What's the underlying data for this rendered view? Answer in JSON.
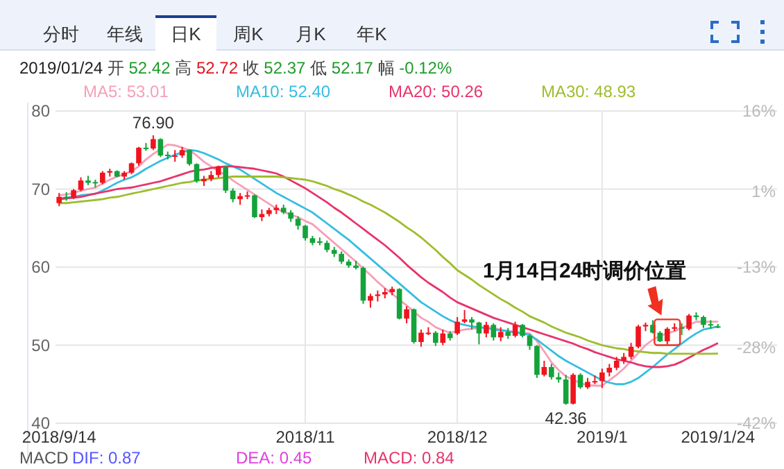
{
  "chart_data": {
    "type": "candlestick",
    "categories": [
      "2018/9/14",
      null,
      null,
      null,
      null,
      null,
      null,
      null,
      null,
      null,
      null,
      null,
      null,
      null,
      null,
      null,
      null,
      null,
      null,
      null,
      null,
      null,
      null,
      null,
      null,
      null,
      null,
      null,
      null,
      null,
      null,
      null,
      null,
      null,
      "2018/11",
      null,
      null,
      null,
      null,
      null,
      null,
      null,
      null,
      null,
      null,
      null,
      null,
      null,
      null,
      null,
      null,
      null,
      null,
      null,
      null,
      "2018/12",
      null,
      null,
      null,
      null,
      null,
      null,
      null,
      null,
      null,
      null,
      null,
      null,
      null,
      null,
      null,
      null,
      null,
      null,
      null,
      "2019/1",
      null,
      null,
      null,
      null,
      null,
      null,
      null,
      null,
      null,
      null,
      null,
      null,
      null,
      null,
      null,
      "2019/1/24"
    ],
    "ohlc": [
      [
        68.2,
        69.5,
        67.8,
        69.0
      ],
      [
        69.0,
        69.6,
        68.5,
        68.9
      ],
      [
        68.9,
        70.0,
        68.7,
        69.85
      ],
      [
        69.9,
        71.5,
        69.7,
        71.1
      ],
      [
        71.1,
        71.7,
        70.5,
        70.8
      ],
      [
        70.9,
        71.2,
        70.2,
        70.8
      ],
      [
        70.8,
        72.3,
        70.6,
        72.1
      ],
      [
        72.1,
        72.6,
        71.6,
        72.3
      ],
      [
        72.3,
        72.4,
        71.5,
        71.6
      ],
      [
        71.6,
        72.3,
        71.2,
        72.1
      ],
      [
        72.1,
        73.4,
        71.9,
        73.3
      ],
      [
        73.3,
        75.4,
        73.0,
        75.3
      ],
      [
        75.3,
        75.9,
        74.9,
        75.2
      ],
      [
        75.2,
        76.9,
        75.0,
        76.4
      ],
      [
        76.4,
        76.5,
        74.1,
        74.3
      ],
      [
        74.4,
        74.8,
        73.8,
        74.3
      ],
      [
        74.2,
        75.0,
        73.5,
        74.3
      ],
      [
        74.3,
        75.4,
        74.0,
        75.0
      ],
      [
        75.0,
        75.1,
        73.0,
        73.2
      ],
      [
        73.2,
        73.3,
        70.8,
        71.0
      ],
      [
        71.0,
        71.7,
        70.4,
        71.3
      ],
      [
        71.3,
        72.3,
        71.0,
        71.8
      ],
      [
        71.8,
        73.0,
        71.5,
        72.9
      ],
      [
        72.9,
        72.9,
        69.5,
        69.8
      ],
      [
        69.8,
        70.1,
        68.3,
        68.7
      ],
      [
        68.7,
        69.5,
        68.0,
        69.1
      ],
      [
        69.1,
        69.7,
        68.7,
        69.2
      ],
      [
        69.2,
        69.3,
        66.3,
        66.4
      ],
      [
        66.4,
        67.4,
        65.9,
        66.8
      ],
      [
        66.8,
        67.6,
        66.5,
        67.3
      ],
      [
        67.3,
        68.0,
        66.8,
        67.6
      ],
      [
        67.6,
        68.0,
        66.8,
        67.0
      ],
      [
        67.0,
        67.3,
        65.8,
        66.2
      ],
      [
        66.2,
        66.5,
        64.8,
        65.3
      ],
      [
        65.3,
        65.4,
        63.4,
        63.7
      ],
      [
        63.7,
        64.0,
        62.8,
        63.1
      ],
      [
        63.3,
        63.8,
        62.8,
        63.1
      ],
      [
        63.1,
        63.4,
        61.9,
        62.2
      ],
      [
        62.2,
        62.6,
        61.3,
        61.7
      ],
      [
        61.7,
        62.0,
        60.4,
        60.7
      ],
      [
        60.7,
        61.0,
        59.9,
        60.2
      ],
      [
        60.2,
        60.8,
        59.7,
        59.9
      ],
      [
        59.9,
        60.1,
        55.3,
        55.7
      ],
      [
        55.7,
        56.6,
        54.8,
        56.3
      ],
      [
        56.3,
        57.0,
        55.6,
        56.5
      ],
      [
        56.5,
        57.3,
        56.0,
        56.8
      ],
      [
        56.8,
        57.5,
        56.4,
        57.2
      ],
      [
        57.2,
        57.3,
        53.3,
        53.4
      ],
      [
        53.4,
        55.0,
        52.8,
        54.6
      ],
      [
        54.6,
        54.7,
        50.2,
        50.4
      ],
      [
        50.4,
        52.0,
        49.8,
        51.6
      ],
      [
        51.5,
        52.3,
        51.3,
        51.6
      ],
      [
        51.6,
        51.8,
        49.9,
        50.3
      ],
      [
        50.3,
        52.0,
        50.0,
        51.5
      ],
      [
        51.5,
        51.8,
        50.6,
        50.9
      ],
      [
        51.5,
        53.6,
        51.3,
        53.0
      ],
      [
        53.0,
        54.5,
        52.8,
        53.3
      ],
      [
        53.3,
        53.6,
        52.0,
        52.9
      ],
      [
        52.9,
        53.0,
        50.1,
        51.5
      ],
      [
        51.5,
        53.0,
        51.0,
        52.6
      ],
      [
        52.6,
        52.8,
        50.6,
        51.0
      ],
      [
        51.0,
        52.3,
        50.5,
        51.7
      ],
      [
        51.7,
        52.2,
        50.8,
        51.2
      ],
      [
        51.2,
        53.0,
        51.0,
        52.6
      ],
      [
        52.6,
        52.7,
        51.0,
        51.2
      ],
      [
        51.2,
        51.4,
        49.4,
        49.9
      ],
      [
        49.9,
        50.0,
        45.8,
        46.2
      ],
      [
        46.2,
        48.0,
        46.0,
        47.2
      ],
      [
        47.2,
        47.6,
        45.6,
        45.9
      ],
      [
        45.9,
        46.5,
        45.2,
        45.6
      ],
      [
        45.6,
        46.2,
        42.36,
        42.5
      ],
      [
        42.5,
        46.4,
        42.4,
        46.2
      ],
      [
        46.2,
        46.4,
        44.4,
        44.6
      ],
      [
        44.6,
        45.8,
        44.4,
        45.3
      ],
      [
        45.3,
        46.1,
        45.0,
        45.4
      ],
      [
        45.4,
        47.0,
        44.5,
        46.5
      ],
      [
        46.5,
        47.6,
        46.0,
        47.1
      ],
      [
        47.1,
        48.5,
        46.8,
        48.0
      ],
      [
        48.0,
        49.0,
        47.6,
        48.5
      ],
      [
        48.5,
        50.3,
        48.2,
        49.8
      ],
      [
        49.8,
        52.6,
        49.6,
        52.4
      ],
      [
        52.4,
        52.9,
        51.8,
        52.6
      ],
      [
        52.6,
        53.2,
        51.5,
        51.6
      ],
      [
        51.6,
        51.8,
        50.4,
        50.5
      ],
      [
        50.5,
        52.3,
        50.1,
        52.1
      ],
      [
        52.1,
        52.8,
        51.8,
        52.3
      ],
      [
        52.3,
        52.8,
        51.3,
        52.1
      ],
      [
        52.1,
        54.0,
        51.9,
        53.8
      ],
      [
        53.8,
        54.2,
        53.2,
        53.6
      ],
      [
        53.6,
        53.8,
        52.2,
        52.6
      ],
      [
        52.7,
        53.2,
        52.1,
        52.6
      ],
      [
        52.42,
        52.72,
        52.17,
        52.37
      ]
    ],
    "series": [
      {
        "name": "MA5: 53.01",
        "type": "line",
        "color": "#f5a0b8",
        "values": [
          69.2,
          69.3,
          69.5,
          69.8,
          70.0,
          70.2,
          70.7,
          71.2,
          71.6,
          71.9,
          72.3,
          72.9,
          73.8,
          74.5,
          75.1,
          75.7,
          75.6,
          75.3,
          75.0,
          74.3,
          73.5,
          72.9,
          72.3,
          71.8,
          71.1,
          70.5,
          69.9,
          69.3,
          68.7,
          68.1,
          67.5,
          67.1,
          66.7,
          66.4,
          65.9,
          65.5,
          64.7,
          63.9,
          63.1,
          62.3,
          61.5,
          60.7,
          59.8,
          59.0,
          58.1,
          57.3,
          56.6,
          55.8,
          55.1,
          54.3,
          53.5,
          53.0,
          52.3,
          51.9,
          51.6,
          51.8,
          52.0,
          52.1,
          52.2,
          52.3,
          52.2,
          52.0,
          51.8,
          51.7,
          51.6,
          51.5,
          50.5,
          49.2,
          47.8,
          46.8,
          46.0,
          45.6,
          45.1,
          44.9,
          44.8,
          44.8,
          45.5,
          46.2,
          47.0,
          48.0,
          49.0,
          50.0,
          50.7,
          51.2,
          51.5,
          51.8,
          52.2,
          52.6,
          53.0,
          53.0,
          53.0,
          53.01
        ]
      },
      {
        "name": "MA10: 52.40",
        "type": "line",
        "color": "#35bde0",
        "values": [
          68.8,
          68.9,
          69.0,
          69.2,
          69.3,
          69.4,
          69.8,
          70.3,
          70.8,
          71.2,
          71.5,
          72.0,
          72.6,
          73.1,
          73.6,
          74.0,
          74.4,
          74.7,
          75.0,
          74.9,
          74.6,
          74.2,
          73.8,
          73.3,
          72.9,
          72.5,
          71.9,
          71.3,
          70.7,
          70.1,
          69.5,
          69.0,
          68.5,
          68.0,
          67.5,
          67.0,
          66.3,
          65.6,
          64.9,
          64.2,
          63.5,
          62.7,
          61.9,
          61.1,
          60.3,
          59.5,
          58.7,
          57.9,
          57.1,
          56.3,
          55.5,
          54.9,
          54.3,
          53.7,
          53.2,
          52.8,
          52.6,
          52.4,
          52.3,
          52.2,
          52.0,
          51.9,
          51.8,
          51.6,
          51.5,
          51.3,
          50.7,
          50.0,
          49.3,
          48.6,
          48.0,
          47.5,
          47.0,
          46.5,
          46.0,
          45.5,
          45.2,
          45.0,
          45.0,
          45.3,
          45.8,
          46.5,
          47.2,
          48.0,
          48.8,
          49.5,
          50.2,
          50.9,
          51.5,
          52.0,
          52.2,
          52.4
        ]
      },
      {
        "name": "MA20: 50.26",
        "type": "line",
        "color": "#e8336b",
        "values": [
          68.7,
          68.8,
          68.9,
          69.0,
          69.2,
          69.4,
          69.6,
          69.8,
          70.0,
          70.1,
          70.2,
          70.4,
          70.6,
          70.8,
          71.0,
          71.3,
          71.6,
          71.9,
          72.2,
          72.4,
          72.5,
          72.7,
          72.8,
          72.9,
          72.9,
          72.8,
          72.7,
          72.6,
          72.4,
          72.2,
          72.0,
          71.6,
          71.1,
          70.6,
          70.1,
          69.5,
          68.9,
          68.3,
          67.6,
          67.0,
          66.3,
          65.6,
          64.9,
          64.2,
          63.5,
          62.8,
          62.0,
          61.2,
          60.3,
          59.5,
          58.7,
          58.0,
          57.4,
          56.8,
          56.1,
          55.5,
          55.1,
          54.7,
          54.3,
          53.9,
          53.5,
          53.2,
          52.9,
          52.6,
          52.3,
          52.0,
          51.7,
          51.4,
          51.1,
          50.8,
          50.5,
          50.2,
          49.8,
          49.5,
          49.1,
          48.8,
          48.5,
          48.2,
          48.0,
          47.8,
          47.5,
          47.3,
          47.2,
          47.2,
          47.3,
          47.5,
          47.9,
          48.4,
          48.9,
          49.4,
          49.8,
          50.26
        ]
      },
      {
        "name": "MA30: 48.93",
        "type": "line",
        "color": "#9dbd2c",
        "values": [
          68.2,
          68.2,
          68.3,
          68.4,
          68.5,
          68.6,
          68.7,
          68.9,
          69.0,
          69.2,
          69.4,
          69.6,
          69.8,
          70.0,
          70.2,
          70.4,
          70.6,
          70.8,
          70.9,
          71.1,
          71.2,
          71.3,
          71.4,
          71.5,
          71.6,
          71.6,
          71.6,
          71.6,
          71.6,
          71.6,
          71.6,
          71.5,
          71.4,
          71.3,
          71.2,
          71.0,
          70.7,
          70.4,
          70.0,
          69.7,
          69.3,
          68.9,
          68.4,
          68.0,
          67.5,
          67.0,
          66.4,
          65.8,
          65.1,
          64.5,
          63.8,
          63.0,
          62.2,
          61.3,
          60.5,
          59.6,
          59.0,
          58.4,
          57.7,
          57.1,
          56.5,
          55.9,
          55.4,
          54.8,
          54.3,
          53.7,
          53.3,
          52.9,
          52.4,
          52.0,
          51.6,
          51.3,
          51.0,
          50.6,
          50.3,
          50.0,
          49.8,
          49.6,
          49.5,
          49.3,
          49.2,
          49.1,
          49.0,
          49.0,
          48.9,
          48.9,
          48.9,
          48.9,
          48.9,
          48.9,
          48.9,
          48.93
        ]
      }
    ],
    "ylim": [
      40,
      80
    ],
    "yticks": [
      40,
      50,
      60,
      70,
      80
    ],
    "y2lim": [
      -42,
      16
    ],
    "y2ticks": [
      {
        "value": -42,
        "label": "-42%"
      },
      {
        "value": -28,
        "label": "-28%"
      },
      {
        "value": -13,
        "label": "-13%"
      },
      {
        "value": 1,
        "label": "1%"
      },
      {
        "value": 16,
        "label": "16%"
      }
    ],
    "grid": true,
    "legend": "top",
    "annotations": [
      "分时",
      "年线",
      "日K",
      "周K",
      "月K",
      "年K",
      "2019/01/24 开 52.42 高 52.72 收 52.37 低 52.17 幅 -0.12%",
      "1月14日24时调价位置",
      "MACD",
      "DIF: 0.87",
      "DEA: 0.45",
      "MACD: 0.84",
      {
        "text": "76.90",
        "y": 76.9
      },
      {
        "text": "42.36",
        "y": 42.36
      }
    ]
  }
}
